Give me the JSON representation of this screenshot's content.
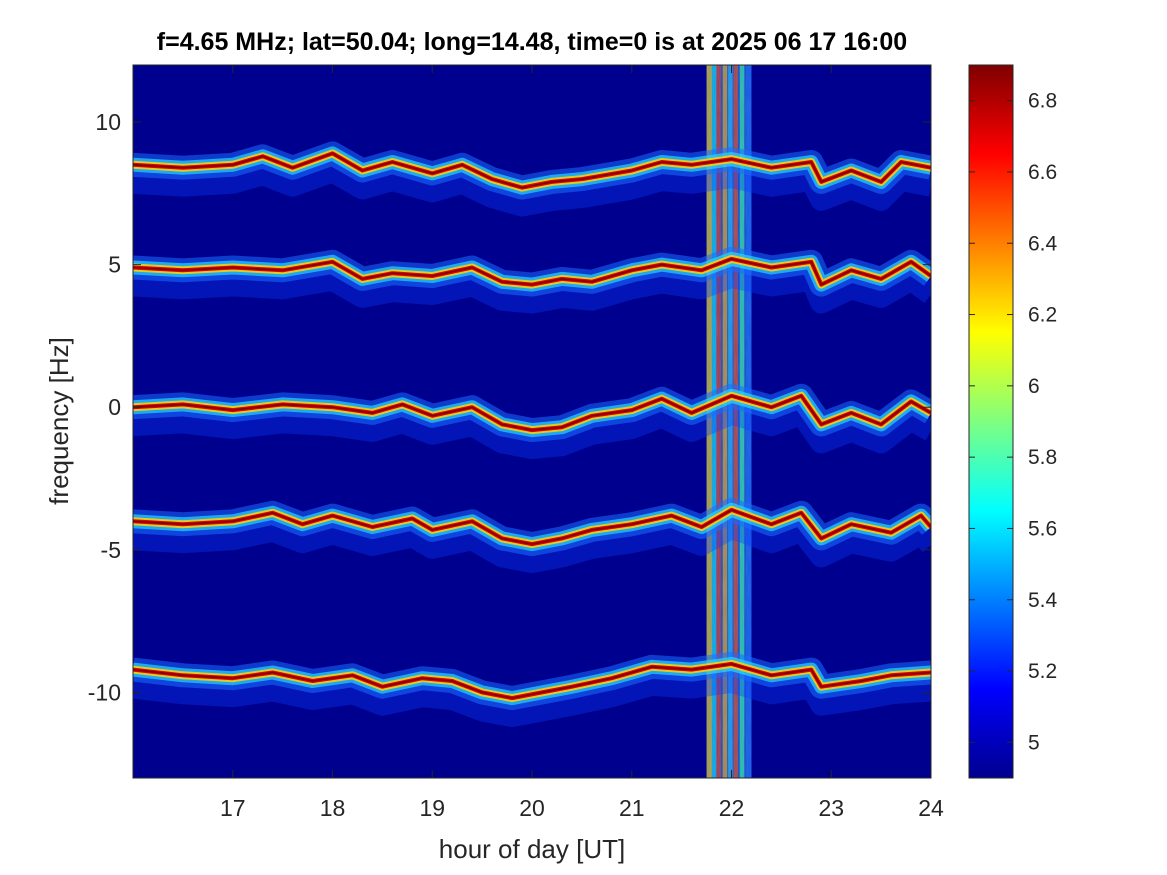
{
  "chart_data": {
    "type": "heatmap",
    "title": "f=4.65 MHz;  lat=50.04; long=14.48, time=0 is at 2025 06 17 16:00",
    "xlabel": "hour of day [UT]",
    "ylabel": "frequency [Hz]",
    "xlim": [
      16,
      24
    ],
    "ylim": [
      -13,
      12
    ],
    "x_ticks": [
      "17",
      "18",
      "19",
      "20",
      "21",
      "22",
      "23",
      "24"
    ],
    "y_ticks": [
      "10",
      "5",
      "0",
      "-5",
      "-10"
    ],
    "colormap": "jet",
    "clim": [
      4.9,
      6.9
    ],
    "colorbar_ticks": [
      "6.8",
      "6.6",
      "6.4",
      "6.2",
      "6",
      "5.8",
      "5.6",
      "5.4",
      "5.2",
      "5"
    ],
    "background_value": 4.95,
    "traces": [
      {
        "base_frequency": 8.5,
        "points": [
          [
            16.0,
            8.5
          ],
          [
            16.5,
            8.4
          ],
          [
            17.0,
            8.5
          ],
          [
            17.3,
            8.8
          ],
          [
            17.6,
            8.4
          ],
          [
            18.0,
            8.9
          ],
          [
            18.3,
            8.3
          ],
          [
            18.6,
            8.6
          ],
          [
            19.0,
            8.2
          ],
          [
            19.3,
            8.5
          ],
          [
            19.6,
            8.0
          ],
          [
            19.9,
            7.7
          ],
          [
            20.2,
            7.9
          ],
          [
            20.5,
            8.0
          ],
          [
            21.0,
            8.3
          ],
          [
            21.3,
            8.6
          ],
          [
            21.6,
            8.5
          ],
          [
            22.0,
            8.7
          ],
          [
            22.4,
            8.4
          ],
          [
            22.8,
            8.6
          ],
          [
            22.9,
            7.9
          ],
          [
            23.2,
            8.3
          ],
          [
            23.5,
            7.9
          ],
          [
            23.7,
            8.6
          ],
          [
            24.0,
            8.4
          ]
        ]
      },
      {
        "base_frequency": 4.9,
        "points": [
          [
            16.0,
            4.9
          ],
          [
            16.5,
            4.8
          ],
          [
            17.0,
            4.9
          ],
          [
            17.5,
            4.8
          ],
          [
            18.0,
            5.1
          ],
          [
            18.3,
            4.5
          ],
          [
            18.6,
            4.7
          ],
          [
            19.0,
            4.6
          ],
          [
            19.4,
            4.9
          ],
          [
            19.7,
            4.4
          ],
          [
            20.0,
            4.3
          ],
          [
            20.3,
            4.5
          ],
          [
            20.6,
            4.4
          ],
          [
            21.0,
            4.8
          ],
          [
            21.3,
            5.0
          ],
          [
            21.7,
            4.8
          ],
          [
            22.0,
            5.2
          ],
          [
            22.4,
            4.9
          ],
          [
            22.8,
            5.1
          ],
          [
            22.9,
            4.3
          ],
          [
            23.2,
            4.8
          ],
          [
            23.5,
            4.5
          ],
          [
            23.8,
            5.1
          ],
          [
            24.0,
            4.6
          ]
        ]
      },
      {
        "base_frequency": 0.0,
        "points": [
          [
            16.0,
            0.0
          ],
          [
            16.5,
            0.1
          ],
          [
            17.0,
            -0.1
          ],
          [
            17.5,
            0.1
          ],
          [
            18.0,
            0.0
          ],
          [
            18.4,
            -0.2
          ],
          [
            18.7,
            0.1
          ],
          [
            19.0,
            -0.3
          ],
          [
            19.4,
            0.0
          ],
          [
            19.7,
            -0.6
          ],
          [
            20.0,
            -0.8
          ],
          [
            20.3,
            -0.7
          ],
          [
            20.6,
            -0.3
          ],
          [
            21.0,
            -0.1
          ],
          [
            21.3,
            0.3
          ],
          [
            21.6,
            -0.2
          ],
          [
            22.0,
            0.4
          ],
          [
            22.4,
            0.0
          ],
          [
            22.7,
            0.4
          ],
          [
            22.9,
            -0.6
          ],
          [
            23.2,
            -0.2
          ],
          [
            23.5,
            -0.6
          ],
          [
            23.8,
            0.2
          ],
          [
            24.0,
            -0.2
          ]
        ]
      },
      {
        "base_frequency": -4.0,
        "points": [
          [
            16.0,
            -4.0
          ],
          [
            16.5,
            -4.1
          ],
          [
            17.0,
            -4.0
          ],
          [
            17.4,
            -3.7
          ],
          [
            17.7,
            -4.1
          ],
          [
            18.0,
            -3.8
          ],
          [
            18.4,
            -4.2
          ],
          [
            18.8,
            -3.9
          ],
          [
            19.0,
            -4.3
          ],
          [
            19.4,
            -4.0
          ],
          [
            19.7,
            -4.6
          ],
          [
            20.0,
            -4.8
          ],
          [
            20.3,
            -4.6
          ],
          [
            20.6,
            -4.3
          ],
          [
            21.0,
            -4.1
          ],
          [
            21.4,
            -3.8
          ],
          [
            21.7,
            -4.2
          ],
          [
            22.0,
            -3.6
          ],
          [
            22.4,
            -4.1
          ],
          [
            22.7,
            -3.7
          ],
          [
            22.9,
            -4.6
          ],
          [
            23.2,
            -4.1
          ],
          [
            23.6,
            -4.4
          ],
          [
            23.9,
            -3.8
          ],
          [
            24.0,
            -4.2
          ]
        ]
      },
      {
        "base_frequency": -9.2,
        "points": [
          [
            16.0,
            -9.2
          ],
          [
            16.5,
            -9.4
          ],
          [
            17.0,
            -9.5
          ],
          [
            17.4,
            -9.3
          ],
          [
            17.8,
            -9.6
          ],
          [
            18.2,
            -9.4
          ],
          [
            18.5,
            -9.8
          ],
          [
            18.9,
            -9.5
          ],
          [
            19.2,
            -9.6
          ],
          [
            19.5,
            -10.0
          ],
          [
            19.8,
            -10.2
          ],
          [
            20.1,
            -10.0
          ],
          [
            20.4,
            -9.8
          ],
          [
            20.8,
            -9.5
          ],
          [
            21.2,
            -9.1
          ],
          [
            21.6,
            -9.2
          ],
          [
            22.0,
            -9.0
          ],
          [
            22.4,
            -9.4
          ],
          [
            22.8,
            -9.2
          ],
          [
            22.9,
            -9.8
          ],
          [
            23.3,
            -9.6
          ],
          [
            23.6,
            -9.4
          ],
          [
            24.0,
            -9.3
          ]
        ]
      }
    ],
    "vertical_band": {
      "x_range": [
        21.75,
        22.2
      ],
      "description_value": 6.0
    },
    "annotations": []
  }
}
